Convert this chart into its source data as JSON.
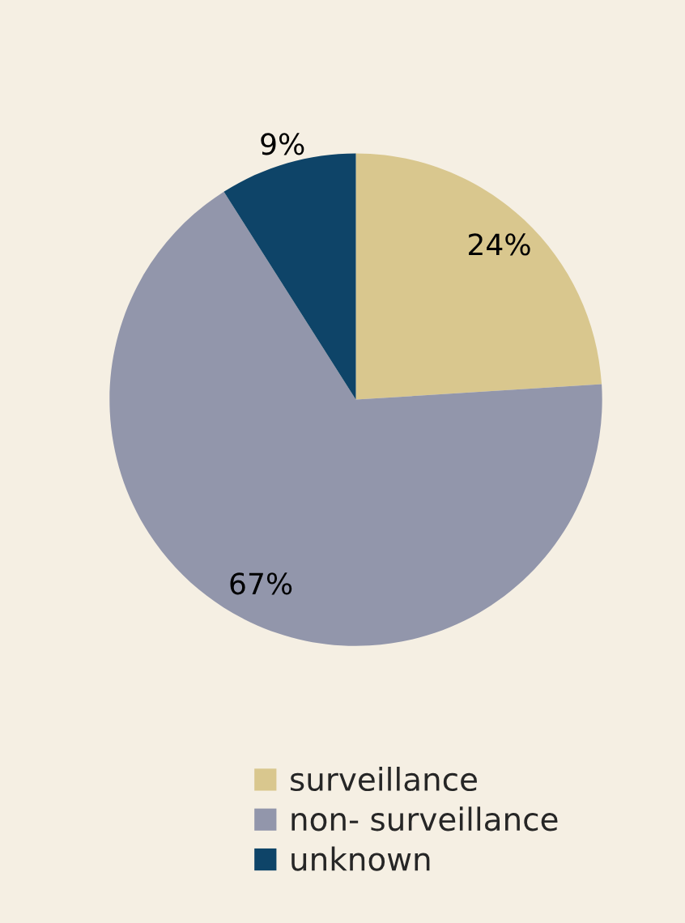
{
  "chart_data": {
    "type": "pie",
    "categories": [
      "surveillance",
      "non- surveillance",
      "unknown"
    ],
    "values": [
      24,
      67,
      9
    ],
    "colors": [
      "#d9c78e",
      "#9296ab",
      "#0e4468"
    ],
    "value_labels": [
      "24%",
      "67%",
      "9%"
    ],
    "legend": "bottom"
  }
}
